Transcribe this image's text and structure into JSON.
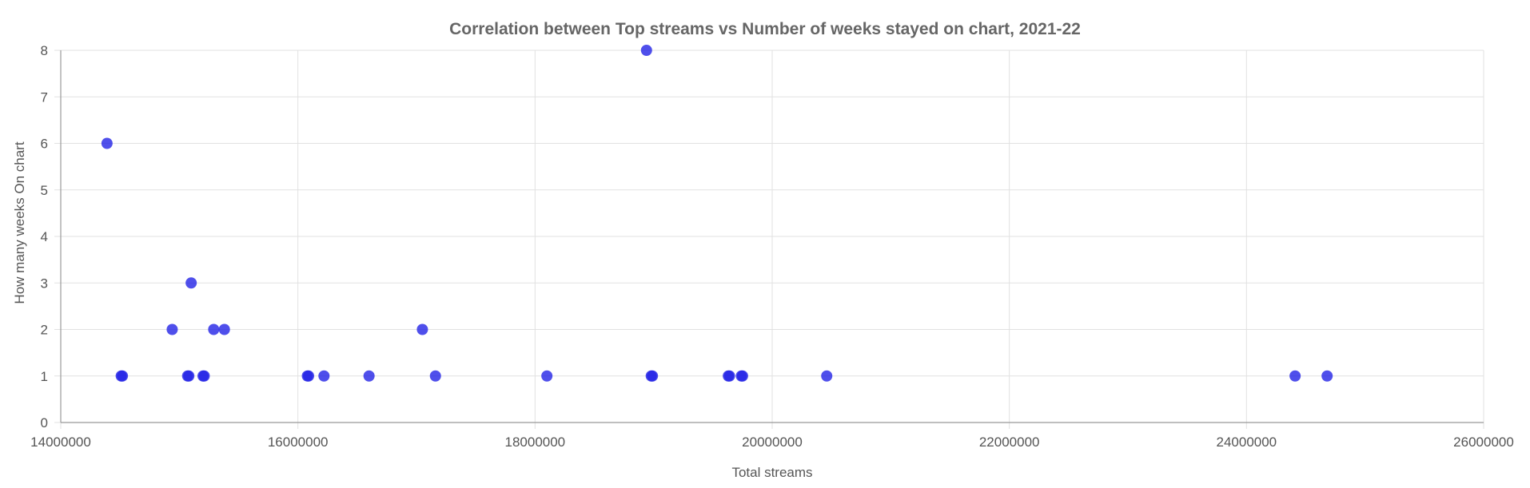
{
  "chart_data": {
    "type": "scatter",
    "title": "Correlation between Top streams vs Number of weeks stayed on chart, 2021-22",
    "xlabel": "Total streams",
    "ylabel": "How many weeks On chart",
    "xlim": [
      14000000,
      26000000
    ],
    "ylim": [
      0,
      8
    ],
    "x_ticks": [
      "14000000",
      "16000000",
      "18000000",
      "20000000",
      "22000000",
      "24000000",
      "26000000"
    ],
    "y_ticks": [
      "0",
      "1",
      "2",
      "3",
      "4",
      "5",
      "6",
      "7",
      "8"
    ],
    "grid": true,
    "legend": "none",
    "point_color": "#2323e6",
    "point_opacity": 0.8,
    "series": [
      {
        "points": [
          {
            "x": 14390000,
            "y": 6
          },
          {
            "x": 14510000,
            "y": 1
          },
          {
            "x": 14520000,
            "y": 1
          },
          {
            "x": 14940000,
            "y": 2
          },
          {
            "x": 15070000,
            "y": 1
          },
          {
            "x": 15080000,
            "y": 1
          },
          {
            "x": 15100000,
            "y": 3
          },
          {
            "x": 15200000,
            "y": 1
          },
          {
            "x": 15210000,
            "y": 1
          },
          {
            "x": 15290000,
            "y": 2
          },
          {
            "x": 15380000,
            "y": 2
          },
          {
            "x": 16080000,
            "y": 1
          },
          {
            "x": 16090000,
            "y": 1
          },
          {
            "x": 16220000,
            "y": 1
          },
          {
            "x": 16600000,
            "y": 1
          },
          {
            "x": 17050000,
            "y": 2
          },
          {
            "x": 17160000,
            "y": 1
          },
          {
            "x": 18100000,
            "y": 1
          },
          {
            "x": 18940000,
            "y": 8
          },
          {
            "x": 18980000,
            "y": 1
          },
          {
            "x": 18990000,
            "y": 1
          },
          {
            "x": 19630000,
            "y": 1
          },
          {
            "x": 19640000,
            "y": 1
          },
          {
            "x": 19740000,
            "y": 1
          },
          {
            "x": 19750000,
            "y": 1
          },
          {
            "x": 20460000,
            "y": 1
          },
          {
            "x": 24410000,
            "y": 1
          },
          {
            "x": 24680000,
            "y": 1
          }
        ]
      }
    ]
  }
}
